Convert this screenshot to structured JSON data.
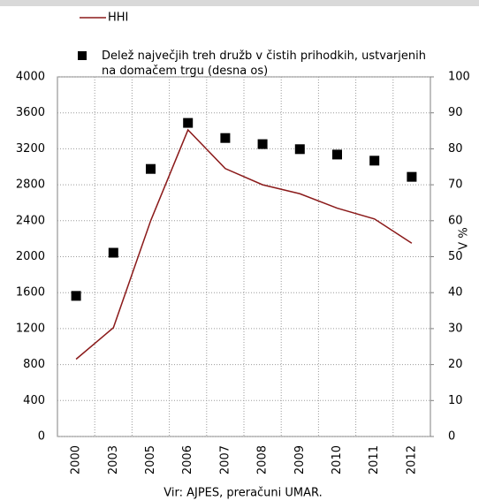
{
  "chart_data": {
    "type": "line",
    "categories": [
      "2000",
      "2003",
      "2005",
      "2006",
      "2007",
      "2008",
      "2009",
      "2010",
      "2011",
      "2012"
    ],
    "series": [
      {
        "name": "HHI",
        "color": "#8b1a1a",
        "style": "line",
        "axis": "y",
        "values": [
          860,
          1210,
          2400,
          3410,
          2980,
          2800,
          2700,
          2540,
          2420,
          2150
        ]
      },
      {
        "name": "Delež največjih treh družb v čistih prihodkih, ustvarjenih na domačem trgu (desna os)",
        "color": "#000000",
        "style": "marker",
        "axis": "y2",
        "values": [
          39.1,
          51.1,
          74.4,
          87.2,
          83.0,
          81.3,
          79.9,
          78.4,
          76.7,
          72.2
        ]
      }
    ],
    "ylim": [
      0,
      4000
    ],
    "yticks": [
      0,
      400,
      800,
      1200,
      1600,
      2000,
      2400,
      2800,
      3200,
      3600,
      4000
    ],
    "y2lim": [
      0,
      100
    ],
    "y2ticks": [
      0,
      10,
      20,
      30,
      40,
      50,
      60,
      70,
      80,
      90,
      100
    ],
    "y2label": "V %",
    "grid": true,
    "source": "Vir: AJPES, preračuni UMAR."
  }
}
